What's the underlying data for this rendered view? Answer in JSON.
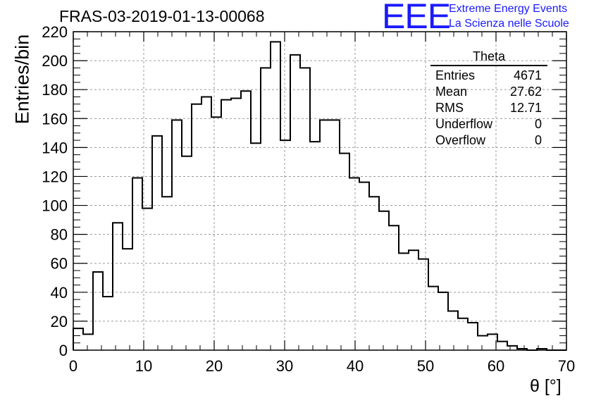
{
  "header": {
    "title": "FRAS-03-2019-01-13-00068",
    "logo_text": "EEE",
    "brand_line1": "Extreme Energy Events",
    "brand_line2": "La Scienza nelle Scuole"
  },
  "stats": {
    "name": "Theta",
    "rows": [
      {
        "label": "Entries",
        "value": "4671"
      },
      {
        "label": "Mean",
        "value": "27.62"
      },
      {
        "label": "RMS",
        "value": "12.71"
      },
      {
        "label": "Underflow",
        "value": "0"
      },
      {
        "label": "Overflow",
        "value": "0"
      }
    ]
  },
  "colors": {
    "brand": "#1a1aff",
    "line": "#000000",
    "grid": "#9a9a9a"
  },
  "chart_data": {
    "type": "histogram",
    "xlabel": "θ [°]",
    "ylabel": "Entries/bin",
    "xlim": [
      0,
      70
    ],
    "ylim": [
      0,
      220
    ],
    "grid": true,
    "x_ticks": [
      0,
      10,
      20,
      30,
      40,
      50,
      60,
      70
    ],
    "y_ticks": [
      0,
      20,
      40,
      60,
      80,
      100,
      120,
      140,
      160,
      180,
      200,
      220
    ],
    "bin_width": 1.4,
    "bin_start": 0,
    "values": [
      15,
      11,
      54,
      37,
      88,
      70,
      119,
      98,
      148,
      106,
      159,
      134,
      170,
      175,
      161,
      173,
      174,
      179,
      143,
      195,
      213,
      145,
      204,
      195,
      144,
      159,
      159,
      136,
      119,
      116,
      106,
      96,
      86,
      67,
      69,
      63,
      44,
      40,
      27,
      22,
      19,
      10,
      11,
      6,
      3,
      1,
      0,
      1,
      0,
      0
    ]
  }
}
